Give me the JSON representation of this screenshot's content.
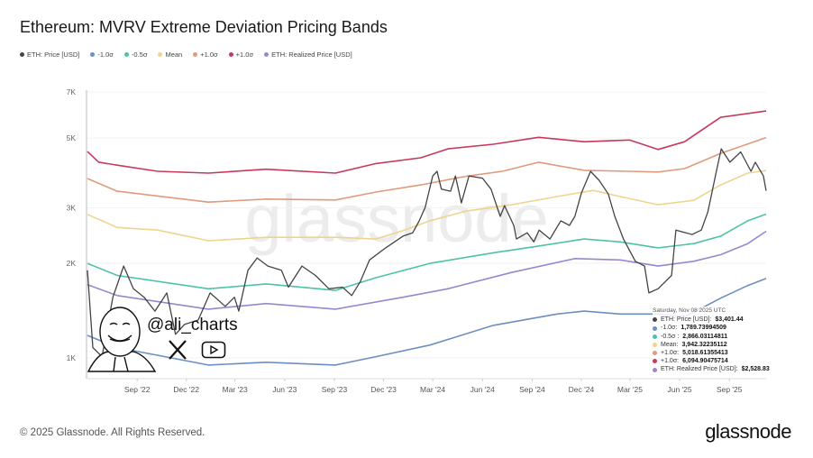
{
  "title": "Ethereum: MVRV Extreme Deviation Pricing Bands",
  "legend": [
    {
      "label": "ETH: Price [USD]",
      "color": "#444444"
    },
    {
      "label": "-1.0σ",
      "color": "#6b8fc2"
    },
    {
      "label": "-0.5σ",
      "color": "#4cc3a6"
    },
    {
      "label": "Mean",
      "color": "#eed48e"
    },
    {
      "label": "+1.0σ",
      "color": "#e09a7c"
    },
    {
      "label": "+1.0σ",
      "color": "#c8385c"
    },
    {
      "label": "ETH: Realized Price [USD]",
      "color": "#9a86cf"
    }
  ],
  "tooltip": {
    "date": "Saturday, Nov 08 2025 UTC",
    "rows": [
      {
        "label": "ETH: Price [USD]: ",
        "value": "$3,401.44",
        "color": "#444444"
      },
      {
        "label": "-1.0σ: ",
        "value": "1,789.73994509",
        "color": "#6b8fc2"
      },
      {
        "label": "-0.5σ : ",
        "value": "2,866.03114811",
        "color": "#4cc3a6"
      },
      {
        "label": "Mean: ",
        "value": "3,942.32235112",
        "color": "#eed48e"
      },
      {
        "label": "+1.0σ: ",
        "value": "5,018.61355413",
        "color": "#e09a7c"
      },
      {
        "label": "+1.0σ: ",
        "value": "6,094.90475714",
        "color": "#c8385c"
      },
      {
        "label": "ETH: Realized Price [USD]: ",
        "value": "$2,528.83",
        "color": "#9a86cf"
      }
    ]
  },
  "watermark": "glassnode",
  "author": {
    "handle": "@ali_charts",
    "icons": [
      "caricature-avatar",
      "x-logo-icon",
      "youtube-icon"
    ]
  },
  "footer": {
    "copyright": "© 2025 Glassnode. All Rights Reserved.",
    "brand": "glassnode"
  },
  "chart_data": {
    "type": "line",
    "title": "Ethereum: MVRV Extreme Deviation Pricing Bands",
    "y_scale": "log",
    "ylim": [
      860,
      7100
    ],
    "xlim": [
      "2022-06-01",
      "2025-11-08"
    ],
    "y_ticks": [
      {
        "value": 1000,
        "label": "1K"
      },
      {
        "value": 2000,
        "label": "2K"
      },
      {
        "value": 3000,
        "label": "3K"
      },
      {
        "value": 5000,
        "label": "5K"
      },
      {
        "value": 7000,
        "label": "7K"
      }
    ],
    "x_ticks": [
      {
        "date": "2022-09-01",
        "label": "Sep '22"
      },
      {
        "date": "2022-12-01",
        "label": "Dec '22"
      },
      {
        "date": "2023-03-01",
        "label": "Mar '23"
      },
      {
        "date": "2023-06-01",
        "label": "Jun '23"
      },
      {
        "date": "2023-09-01",
        "label": "Sep '23"
      },
      {
        "date": "2023-12-01",
        "label": "Dec '23"
      },
      {
        "date": "2024-03-01",
        "label": "Mar '24"
      },
      {
        "date": "2024-06-01",
        "label": "Jun '24"
      },
      {
        "date": "2024-09-01",
        "label": "Sep '24"
      },
      {
        "date": "2024-12-01",
        "label": "Dec '24"
      },
      {
        "date": "2025-03-01",
        "label": "Mar '25"
      },
      {
        "date": "2025-06-01",
        "label": "Jun '25"
      },
      {
        "date": "2025-09-01",
        "label": "Sep '25"
      }
    ],
    "grid": true,
    "legend_position": "top-left",
    "series": [
      {
        "name": "+1.0σ",
        "color": "#c8385c",
        "points": [
          [
            "2022-06-01",
            4530
          ],
          [
            "2022-06-22",
            4190
          ],
          [
            "2022-07-26",
            4100
          ],
          [
            "2022-10-09",
            3920
          ],
          [
            "2023-01-11",
            3870
          ],
          [
            "2023-04-28",
            3980
          ],
          [
            "2023-09-03",
            3870
          ],
          [
            "2023-11-17",
            4150
          ],
          [
            "2024-02-08",
            4330
          ],
          [
            "2024-03-29",
            4620
          ],
          [
            "2024-06-21",
            4780
          ],
          [
            "2024-09-13",
            5030
          ],
          [
            "2024-12-06",
            4870
          ],
          [
            "2025-02-28",
            4930
          ],
          [
            "2025-04-22",
            4600
          ],
          [
            "2025-06-10",
            4870
          ],
          [
            "2025-08-16",
            5820
          ],
          [
            "2025-11-08",
            6095
          ]
        ]
      },
      {
        "name": "+1.0σ",
        "color": "#e09a7c",
        "points": [
          [
            "2022-06-01",
            3720
          ],
          [
            "2022-07-26",
            3390
          ],
          [
            "2023-01-11",
            3130
          ],
          [
            "2023-04-28",
            3200
          ],
          [
            "2023-09-03",
            3180
          ],
          [
            "2023-11-17",
            3370
          ],
          [
            "2024-02-08",
            3550
          ],
          [
            "2024-05-01",
            3780
          ],
          [
            "2024-07-08",
            3920
          ],
          [
            "2024-09-13",
            4190
          ],
          [
            "2024-12-06",
            3950
          ],
          [
            "2025-02-28",
            3920
          ],
          [
            "2025-04-22",
            3900
          ],
          [
            "2025-06-10",
            4000
          ],
          [
            "2025-08-16",
            4470
          ],
          [
            "2025-11-08",
            5019
          ]
        ]
      },
      {
        "name": "Mean",
        "color": "#eed48e",
        "points": [
          [
            "2022-06-01",
            2860
          ],
          [
            "2022-07-26",
            2600
          ],
          [
            "2022-10-09",
            2550
          ],
          [
            "2023-01-11",
            2360
          ],
          [
            "2023-04-28",
            2420
          ],
          [
            "2023-09-03",
            2420
          ],
          [
            "2023-11-17",
            2390
          ],
          [
            "2024-01-06",
            2540
          ],
          [
            "2024-02-25",
            2730
          ],
          [
            "2024-05-01",
            2930
          ],
          [
            "2024-07-25",
            3070
          ],
          [
            "2024-10-17",
            3260
          ],
          [
            "2024-12-23",
            3410
          ],
          [
            "2025-02-11",
            3260
          ],
          [
            "2025-04-22",
            3070
          ],
          [
            "2025-06-27",
            3170
          ],
          [
            "2025-08-16",
            3550
          ],
          [
            "2025-10-05",
            3870
          ],
          [
            "2025-11-08",
            3942
          ]
        ]
      },
      {
        "name": "-0.5σ",
        "color": "#4cc3a6",
        "points": [
          [
            "2022-06-01",
            2000
          ],
          [
            "2022-07-26",
            1830
          ],
          [
            "2023-01-11",
            1660
          ],
          [
            "2023-04-28",
            1720
          ],
          [
            "2023-09-03",
            1640
          ],
          [
            "2023-11-17",
            1800
          ],
          [
            "2024-02-25",
            2000
          ],
          [
            "2024-06-21",
            2160
          ],
          [
            "2024-09-13",
            2270
          ],
          [
            "2024-12-06",
            2390
          ],
          [
            "2025-02-11",
            2340
          ],
          [
            "2025-04-22",
            2240
          ],
          [
            "2025-06-27",
            2310
          ],
          [
            "2025-08-16",
            2440
          ],
          [
            "2025-10-05",
            2730
          ],
          [
            "2025-11-08",
            2866
          ]
        ]
      },
      {
        "name": "ETH: Realized Price [USD]",
        "color": "#9a86cf",
        "points": [
          [
            "2022-06-01",
            1710
          ],
          [
            "2022-07-26",
            1580
          ],
          [
            "2023-01-11",
            1430
          ],
          [
            "2023-04-28",
            1490
          ],
          [
            "2023-09-03",
            1430
          ],
          [
            "2024-01-06",
            1560
          ],
          [
            "2024-03-29",
            1660
          ],
          [
            "2024-07-25",
            1870
          ],
          [
            "2024-11-19",
            2070
          ],
          [
            "2025-02-11",
            2050
          ],
          [
            "2025-04-22",
            1960
          ],
          [
            "2025-06-27",
            2030
          ],
          [
            "2025-08-16",
            2130
          ],
          [
            "2025-10-05",
            2310
          ],
          [
            "2025-11-08",
            2529
          ]
        ]
      },
      {
        "name": "-1.0σ",
        "color": "#6b8fc2",
        "points": [
          [
            "2022-06-01",
            1180
          ],
          [
            "2022-07-26",
            1080
          ],
          [
            "2023-01-11",
            950
          ],
          [
            "2023-04-28",
            970
          ],
          [
            "2023-09-03",
            950
          ],
          [
            "2023-11-17",
            1010
          ],
          [
            "2024-02-25",
            1100
          ],
          [
            "2024-06-21",
            1270
          ],
          [
            "2024-10-17",
            1380
          ],
          [
            "2024-12-06",
            1410
          ],
          [
            "2025-02-11",
            1380
          ],
          [
            "2025-04-22",
            1380
          ],
          [
            "2025-06-10",
            1350
          ],
          [
            "2025-08-16",
            1550
          ],
          [
            "2025-10-05",
            1700
          ],
          [
            "2025-11-08",
            1790
          ]
        ]
      },
      {
        "name": "ETH: Price [USD]",
        "color": "#444444",
        "points": [
          [
            "2022-06-01",
            1900
          ],
          [
            "2022-06-11",
            1080
          ],
          [
            "2022-06-28",
            1010
          ],
          [
            "2022-07-18",
            1560
          ],
          [
            "2022-08-07",
            1960
          ],
          [
            "2022-08-25",
            1660
          ],
          [
            "2022-09-14",
            1560
          ],
          [
            "2022-10-04",
            1410
          ],
          [
            "2022-10-26",
            1610
          ],
          [
            "2022-11-11",
            1190
          ],
          [
            "2022-11-28",
            1280
          ],
          [
            "2022-12-23",
            1320
          ],
          [
            "2023-01-14",
            1610
          ],
          [
            "2023-02-11",
            1460
          ],
          [
            "2023-02-28",
            1560
          ],
          [
            "2023-03-08",
            1410
          ],
          [
            "2023-03-25",
            1900
          ],
          [
            "2023-04-11",
            2080
          ],
          [
            "2023-05-01",
            1960
          ],
          [
            "2023-05-26",
            1900
          ],
          [
            "2023-06-08",
            1680
          ],
          [
            "2023-07-03",
            1960
          ],
          [
            "2023-07-28",
            1830
          ],
          [
            "2023-08-22",
            1660
          ],
          [
            "2023-09-16",
            1680
          ],
          [
            "2023-10-03",
            1580
          ],
          [
            "2023-10-19",
            1750
          ],
          [
            "2023-11-05",
            2050
          ],
          [
            "2023-12-05",
            2240
          ],
          [
            "2024-01-06",
            2440
          ],
          [
            "2024-01-24",
            2500
          ],
          [
            "2024-02-05",
            2730
          ],
          [
            "2024-02-16",
            3010
          ],
          [
            "2024-03-01",
            3790
          ],
          [
            "2024-03-09",
            3920
          ],
          [
            "2024-03-17",
            3440
          ],
          [
            "2024-04-03",
            3390
          ],
          [
            "2024-04-12",
            3790
          ],
          [
            "2024-04-23",
            3110
          ],
          [
            "2024-05-07",
            3790
          ],
          [
            "2024-06-01",
            3730
          ],
          [
            "2024-06-17",
            3440
          ],
          [
            "2024-07-04",
            2820
          ],
          [
            "2024-07-12",
            3050
          ],
          [
            "2024-07-29",
            2640
          ],
          [
            "2024-08-03",
            2390
          ],
          [
            "2024-08-23",
            2500
          ],
          [
            "2024-09-04",
            2340
          ],
          [
            "2024-09-14",
            2550
          ],
          [
            "2024-10-04",
            2390
          ],
          [
            "2024-10-24",
            2730
          ],
          [
            "2024-11-09",
            2640
          ],
          [
            "2024-11-19",
            2820
          ],
          [
            "2024-12-01",
            3340
          ],
          [
            "2024-12-18",
            3920
          ],
          [
            "2025-01-03",
            3670
          ],
          [
            "2025-01-20",
            3320
          ],
          [
            "2025-02-01",
            2820
          ],
          [
            "2025-02-17",
            2390
          ],
          [
            "2025-03-11",
            2030
          ],
          [
            "2025-03-28",
            1960
          ],
          [
            "2025-04-05",
            1610
          ],
          [
            "2025-04-22",
            1660
          ],
          [
            "2025-05-17",
            1830
          ],
          [
            "2025-05-25",
            2550
          ],
          [
            "2025-06-24",
            2470
          ],
          [
            "2025-07-11",
            2550
          ],
          [
            "2025-07-23",
            2910
          ],
          [
            "2025-08-08",
            3920
          ],
          [
            "2025-08-17",
            4620
          ],
          [
            "2025-09-02",
            4190
          ],
          [
            "2025-09-22",
            4520
          ],
          [
            "2025-10-11",
            3920
          ],
          [
            "2025-10-19",
            4190
          ],
          [
            "2025-11-03",
            3790
          ],
          [
            "2025-11-08",
            3401
          ]
        ]
      }
    ]
  }
}
